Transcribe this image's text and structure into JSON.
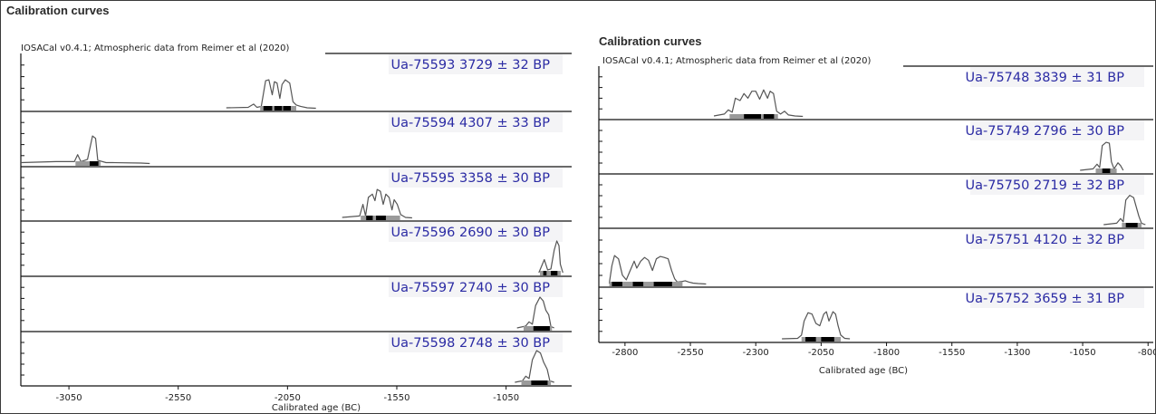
{
  "chart_data": [
    {
      "type": "area",
      "title": "Calibration curves",
      "credit": "IOSACal v0.4.1; Atmospheric data from Reimer et al (2020)",
      "xlabel": "Calibrated age (BC)",
      "xlim": [
        -3270,
        -750
      ],
      "xticks": [
        -3050,
        -2550,
        -2050,
        -1550,
        -1050
      ],
      "tick_labels": [
        "-3050",
        "-2550",
        "-2050",
        "-1550",
        "-1050"
      ],
      "series": [
        {
          "name": "Ua-75593 3729 ± 32 BP",
          "curve": [
            [
              -2330,
              0.02
            ],
            [
              -2230,
              0.03
            ],
            [
              -2205,
              0.1
            ],
            [
              -2190,
              0.03
            ],
            [
              -2170,
              0.05
            ],
            [
              -2150,
              0.6
            ],
            [
              -2135,
              0.62
            ],
            [
              -2120,
              0.3
            ],
            [
              -2110,
              0.58
            ],
            [
              -2098,
              0.55
            ],
            [
              -2085,
              0.22
            ],
            [
              -2075,
              0.52
            ],
            [
              -2060,
              0.62
            ],
            [
              -2040,
              0.55
            ],
            [
              -2025,
              0.15
            ],
            [
              -2010,
              0.08
            ],
            [
              -1990,
              0.05
            ],
            [
              -1960,
              0.02
            ],
            [
              -1920,
              0.01
            ]
          ],
          "range_68": [
            [
              -2160,
              -2120
            ],
            [
              -2110,
              -2075
            ],
            [
              -2070,
              -2035
            ]
          ],
          "range_95": [
            [
              -2175,
              -2010
            ]
          ]
        },
        {
          "name": "Ua-75594 4307 ± 33 BP",
          "curve": [
            [
              -3270,
              0.03
            ],
            [
              -3110,
              0.05
            ],
            [
              -3025,
              0.05
            ],
            [
              -3010,
              0.2
            ],
            [
              -2995,
              0.05
            ],
            [
              -2965,
              0.1
            ],
            [
              -2942,
              0.6
            ],
            [
              -2928,
              0.55
            ],
            [
              -2918,
              0.08
            ],
            [
              -2880,
              0.03
            ],
            [
              -2850,
              0.03
            ],
            [
              -2720,
              0.02
            ],
            [
              -2680,
              0.01
            ]
          ],
          "range_68": [
            [
              -2955,
              -2915
            ]
          ],
          "range_95": [
            [
              -3020,
              -2905
            ]
          ]
        },
        {
          "name": "Ua-75595 3358 ± 30 BP",
          "curve": [
            [
              -1800,
              0.02
            ],
            [
              -1720,
              0.05
            ],
            [
              -1705,
              0.3
            ],
            [
              -1693,
              0.05
            ],
            [
              -1680,
              0.45
            ],
            [
              -1662,
              0.52
            ],
            [
              -1650,
              0.38
            ],
            [
              -1640,
              0.62
            ],
            [
              -1625,
              0.58
            ],
            [
              -1612,
              0.3
            ],
            [
              -1600,
              0.52
            ],
            [
              -1585,
              0.45
            ],
            [
              -1572,
              0.18
            ],
            [
              -1562,
              0.4
            ],
            [
              -1548,
              0.3
            ],
            [
              -1532,
              0.08
            ],
            [
              -1510,
              0.02
            ],
            [
              -1480,
              0.01
            ]
          ],
          "range_68": [
            [
              -1690,
              -1660
            ],
            [
              -1645,
              -1600
            ]
          ],
          "range_95": [
            [
              -1715,
              -1535
            ]
          ]
        },
        {
          "name": "Ua-75596 2690 ± 30 BP",
          "curve": [
            [
              -900,
              0.02
            ],
            [
              -875,
              0.3
            ],
            [
              -860,
              0.08
            ],
            [
              -845,
              0.1
            ],
            [
              -830,
              0.5
            ],
            [
              -818,
              0.7
            ],
            [
              -808,
              0.6
            ],
            [
              -802,
              0.2
            ],
            [
              -790,
              0.02
            ]
          ],
          "range_68": [
            [
              -880,
              -865
            ],
            [
              -845,
              -815
            ]
          ],
          "range_95": [
            [
              -895,
              -800
            ]
          ]
        },
        {
          "name": "Ua-75597 2740 ± 30 BP",
          "curve": [
            [
              -1000,
              0.02
            ],
            [
              -960,
              0.06
            ],
            [
              -945,
              0.15
            ],
            [
              -930,
              0.1
            ],
            [
              -915,
              0.5
            ],
            [
              -895,
              0.68
            ],
            [
              -880,
              0.6
            ],
            [
              -868,
              0.4
            ],
            [
              -855,
              0.3
            ],
            [
              -845,
              0.05
            ],
            [
              -830,
              0.02
            ]
          ],
          "range_68": [
            [
              -925,
              -850
            ]
          ],
          "range_95": [
            [
              -970,
              -840
            ]
          ]
        },
        {
          "name": "Ua-75598 2748 ± 30 BP",
          "curve": [
            [
              -1010,
              0.02
            ],
            [
              -975,
              0.05
            ],
            [
              -960,
              0.15
            ],
            [
              -945,
              0.1
            ],
            [
              -930,
              0.5
            ],
            [
              -910,
              0.7
            ],
            [
              -893,
              0.65
            ],
            [
              -878,
              0.45
            ],
            [
              -862,
              0.3
            ],
            [
              -850,
              0.05
            ],
            [
              -830,
              0.02
            ]
          ],
          "range_68": [
            [
              -935,
              -860
            ]
          ],
          "range_95": [
            [
              -980,
              -845
            ]
          ]
        }
      ]
    },
    {
      "type": "area",
      "title": "Calibration curves",
      "credit": "IOSACal v0.4.1; Atmospheric data from Reimer et al (2020)",
      "xlabel": "Calibrated age (BC)",
      "xlim": [
        -2900,
        -780
      ],
      "xticks": [
        -2800,
        -2550,
        -2300,
        -2050,
        -1800,
        -1550,
        -1300,
        -1050,
        -800
      ],
      "tick_labels": [
        "-2800",
        "-2550",
        "-2300",
        "-2050",
        "-1800",
        "-1550",
        "-1300",
        "-1050",
        "-800"
      ],
      "series": [
        {
          "name": "Ua-75748 3839 ± 31 BP",
          "curve": [
            [
              -2460,
              0.02
            ],
            [
              -2420,
              0.06
            ],
            [
              -2405,
              0.15
            ],
            [
              -2390,
              0.1
            ],
            [
              -2378,
              0.4
            ],
            [
              -2360,
              0.35
            ],
            [
              -2345,
              0.5
            ],
            [
              -2330,
              0.4
            ],
            [
              -2315,
              0.55
            ],
            [
              -2300,
              0.55
            ],
            [
              -2285,
              0.38
            ],
            [
              -2270,
              0.58
            ],
            [
              -2255,
              0.4
            ],
            [
              -2245,
              0.55
            ],
            [
              -2232,
              0.5
            ],
            [
              -2220,
              0.12
            ],
            [
              -2205,
              0.06
            ],
            [
              -2190,
              0.12
            ],
            [
              -2175,
              0.04
            ],
            [
              -2150,
              0.02
            ],
            [
              -2120,
              0.01
            ]
          ],
          "range_68": [
            [
              -2345,
              -2280
            ],
            [
              -2270,
              -2230
            ]
          ],
          "range_95": [
            [
              -2400,
              -2215
            ]
          ]
        },
        {
          "name": "Ua-75749 2796 ± 30 BP",
          "curve": [
            [
              -1060,
              0.02
            ],
            [
              -1010,
              0.05
            ],
            [
              -995,
              0.15
            ],
            [
              -985,
              0.08
            ],
            [
              -975,
              0.55
            ],
            [
              -960,
              0.62
            ],
            [
              -948,
              0.6
            ],
            [
              -940,
              0.2
            ],
            [
              -930,
              0.05
            ],
            [
              -915,
              0.18
            ],
            [
              -905,
              0.12
            ],
            [
              -895,
              0.02
            ]
          ],
          "range_68": [
            [
              -975,
              -945
            ]
          ],
          "range_95": [
            [
              -1000,
              -920
            ]
          ]
        },
        {
          "name": "Ua-75750 2719 ± 32 BP",
          "curve": [
            [
              -970,
              0.02
            ],
            [
              -920,
              0.05
            ],
            [
              -905,
              0.15
            ],
            [
              -895,
              0.08
            ],
            [
              -885,
              0.55
            ],
            [
              -870,
              0.65
            ],
            [
              -855,
              0.6
            ],
            [
              -845,
              0.4
            ],
            [
              -835,
              0.2
            ],
            [
              -825,
              0.05
            ],
            [
              -810,
              0.02
            ]
          ],
          "range_68": [
            [
              -885,
              -840
            ]
          ],
          "range_95": [
            [
              -900,
              -825
            ]
          ]
        },
        {
          "name": "Ua-75751 4120 ± 32 BP",
          "curve": [
            [
              -2860,
              0.02
            ],
            [
              -2850,
              0.4
            ],
            [
              -2840,
              0.62
            ],
            [
              -2825,
              0.55
            ],
            [
              -2810,
              0.2
            ],
            [
              -2795,
              0.1
            ],
            [
              -2780,
              0.3
            ],
            [
              -2765,
              0.5
            ],
            [
              -2755,
              0.35
            ],
            [
              -2740,
              0.5
            ],
            [
              -2725,
              0.58
            ],
            [
              -2710,
              0.52
            ],
            [
              -2695,
              0.3
            ],
            [
              -2680,
              0.55
            ],
            [
              -2665,
              0.6
            ],
            [
              -2650,
              0.58
            ],
            [
              -2635,
              0.55
            ],
            [
              -2622,
              0.3
            ],
            [
              -2610,
              0.12
            ],
            [
              -2600,
              0.05
            ],
            [
              -2585,
              0.06
            ],
            [
              -2570,
              0.08
            ],
            [
              -2555,
              0.05
            ],
            [
              -2540,
              0.03
            ],
            [
              -2520,
              0.02
            ],
            [
              -2490,
              0.01
            ]
          ],
          "range_68": [
            [
              -2850,
              -2810
            ],
            [
              -2770,
              -2730
            ],
            [
              -2690,
              -2620
            ]
          ],
          "range_95": [
            [
              -2860,
              -2580
            ]
          ]
        },
        {
          "name": "Ua-75752 3659 ± 31 BP",
          "curve": [
            [
              -2200,
              0.02
            ],
            [
              -2140,
              0.03
            ],
            [
              -2125,
              0.1
            ],
            [
              -2115,
              0.4
            ],
            [
              -2100,
              0.58
            ],
            [
              -2085,
              0.55
            ],
            [
              -2070,
              0.35
            ],
            [
              -2055,
              0.3
            ],
            [
              -2040,
              0.55
            ],
            [
              -2030,
              0.6
            ],
            [
              -2020,
              0.4
            ],
            [
              -2005,
              0.6
            ],
            [
              -1995,
              0.55
            ],
            [
              -1985,
              0.3
            ],
            [
              -1975,
              0.1
            ],
            [
              -1960,
              0.03
            ],
            [
              -1940,
              0.02
            ]
          ],
          "range_68": [
            [
              -2110,
              -2070
            ],
            [
              -2050,
              -2000
            ]
          ],
          "range_95": [
            [
              -2125,
              -1975
            ]
          ]
        }
      ]
    }
  ]
}
